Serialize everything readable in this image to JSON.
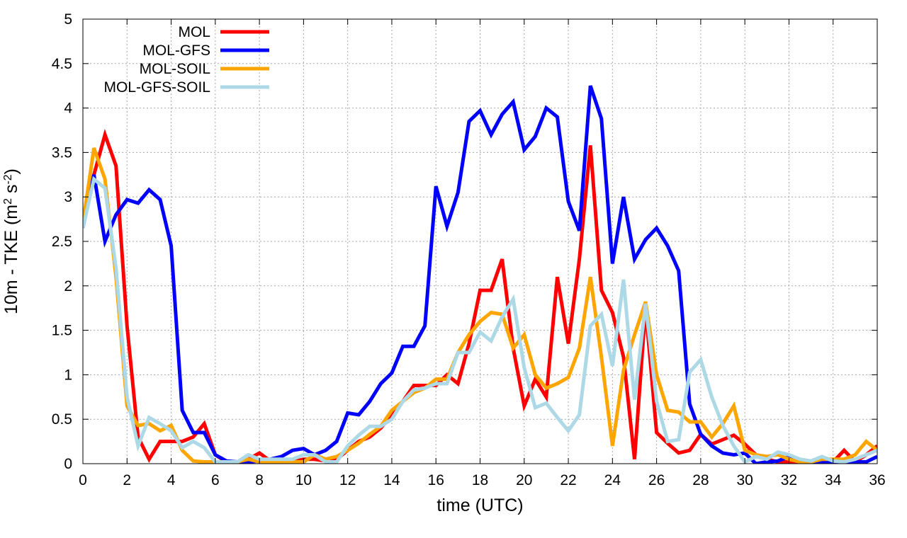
{
  "chart_data": {
    "type": "line",
    "title": "",
    "xlabel": "time (UTC)",
    "ylabel": "10m - TKE (m² s⁻²)",
    "ylabel_parts": {
      "base": "10m - TKE (m",
      "exp1": "2",
      "mid": " s",
      "exp2": "-2",
      "end": ")"
    },
    "xlim": [
      0,
      36
    ],
    "ylim": [
      0,
      5
    ],
    "xticks": [
      0,
      2,
      4,
      6,
      8,
      10,
      12,
      14,
      16,
      18,
      20,
      22,
      24,
      26,
      28,
      30,
      32,
      34,
      36
    ],
    "xtick_labels": [
      "0",
      "2",
      "4",
      "6",
      "8",
      "10",
      "12",
      "14",
      "16",
      "18",
      "20",
      "22",
      "24",
      "26",
      "28",
      "30",
      "32",
      "34",
      "36"
    ],
    "yticks": [
      0,
      0.5,
      1,
      1.5,
      2,
      2.5,
      3,
      3.5,
      4,
      4.5,
      5
    ],
    "ytick_labels": [
      "0",
      "0.5",
      "1",
      "1.5",
      "2",
      "2.5",
      "3",
      "3.5",
      "4",
      "4.5",
      "5"
    ],
    "grid": true,
    "legend_position": "top-left",
    "x": [
      0,
      0.5,
      1,
      1.5,
      2,
      2.5,
      3,
      3.5,
      4,
      4.5,
      5,
      5.5,
      6,
      6.5,
      7,
      7.5,
      8,
      8.5,
      9,
      9.5,
      10,
      10.5,
      11,
      11.5,
      12,
      12.5,
      13,
      13.5,
      14,
      14.5,
      15,
      15.5,
      16,
      16.5,
      17,
      17.5,
      18,
      18.5,
      19,
      19.5,
      20,
      20.5,
      21,
      21.5,
      22,
      22.5,
      23,
      23.5,
      24,
      24.5,
      25,
      25.5,
      26,
      26.5,
      27,
      27.5,
      28,
      28.5,
      29,
      29.5,
      30,
      30.5,
      31,
      31.5,
      32,
      32.5,
      33,
      33.5,
      34,
      34.5,
      35,
      35.5,
      36
    ],
    "series": [
      {
        "name": "MOL",
        "color": "#ff0000",
        "values": [
          2.7,
          3.25,
          3.7,
          3.35,
          1.55,
          0.3,
          0.05,
          0.25,
          0.25,
          0.25,
          0.3,
          0.45,
          0.1,
          0.02,
          0.02,
          0.05,
          0.12,
          0.03,
          0.02,
          0.02,
          0.05,
          0.05,
          0.03,
          0.05,
          0.15,
          0.25,
          0.3,
          0.4,
          0.55,
          0.7,
          0.88,
          0.88,
          0.88,
          1.0,
          0.9,
          1.35,
          1.95,
          1.95,
          2.3,
          1.3,
          0.65,
          0.95,
          0.75,
          2.1,
          1.35,
          2.3,
          3.58,
          1.95,
          1.7,
          1.2,
          0.05,
          1.75,
          0.35,
          0.23,
          0.12,
          0.15,
          0.33,
          0.22,
          0.27,
          0.32,
          0.22,
          0.1,
          0.05,
          0.02,
          0.02,
          0.02,
          0.02,
          0.02,
          0.02,
          0.15,
          0.02,
          0.1,
          0.2
        ]
      },
      {
        "name": "MOL-GFS",
        "color": "#0000ff",
        "values": [
          2.65,
          3.25,
          2.5,
          2.8,
          2.97,
          2.93,
          3.08,
          2.97,
          2.45,
          0.6,
          0.35,
          0.35,
          0.1,
          0.03,
          0.02,
          0.02,
          0.03,
          0.05,
          0.08,
          0.15,
          0.17,
          0.1,
          0.15,
          0.25,
          0.57,
          0.55,
          0.7,
          0.9,
          1.02,
          1.32,
          1.32,
          1.55,
          3.12,
          2.67,
          3.05,
          3.85,
          3.97,
          3.7,
          3.93,
          4.07,
          3.53,
          3.68,
          4.0,
          3.9,
          2.95,
          2.62,
          4.25,
          3.88,
          2.25,
          3.0,
          2.3,
          2.52,
          2.65,
          2.45,
          2.17,
          0.67,
          0.33,
          0.2,
          0.12,
          0.1,
          0.12,
          0.0,
          0.02,
          0.03,
          0.08,
          0.03,
          0.02,
          0.02,
          0.02,
          0.02,
          0.02,
          0.02,
          0.08
        ]
      },
      {
        "name": "MOL-SOIL",
        "color": "#ffa500",
        "values": [
          2.7,
          3.55,
          3.2,
          2.1,
          0.65,
          0.43,
          0.45,
          0.37,
          0.43,
          0.15,
          0.03,
          0.02,
          0.02,
          0.02,
          0.02,
          0.05,
          0.02,
          0.02,
          0.02,
          0.02,
          0.02,
          0.1,
          0.05,
          0.08,
          0.15,
          0.23,
          0.33,
          0.42,
          0.6,
          0.7,
          0.8,
          0.85,
          0.95,
          0.95,
          1.25,
          1.45,
          1.6,
          1.7,
          1.68,
          1.3,
          1.45,
          1.0,
          0.85,
          0.9,
          0.97,
          1.3,
          2.1,
          1.2,
          0.2,
          1.05,
          1.45,
          1.82,
          1.0,
          0.6,
          0.58,
          0.47,
          0.47,
          0.3,
          0.45,
          0.65,
          0.15,
          0.1,
          0.08,
          0.1,
          0.05,
          0.02,
          0.02,
          0.05,
          0.05,
          0.05,
          0.1,
          0.25,
          0.15
        ]
      },
      {
        "name": "MOL-GFS-SOIL",
        "color": "#add8e6",
        "values": [
          2.65,
          3.2,
          3.1,
          2.2,
          0.75,
          0.2,
          0.52,
          0.45,
          0.37,
          0.18,
          0.25,
          0.18,
          0.02,
          0.02,
          0.02,
          0.1,
          0.05,
          0.05,
          0.05,
          0.05,
          0.1,
          0.1,
          0.02,
          0.02,
          0.2,
          0.32,
          0.42,
          0.42,
          0.5,
          0.7,
          0.83,
          0.85,
          0.9,
          0.9,
          1.25,
          1.25,
          1.48,
          1.38,
          1.65,
          1.85,
          1.08,
          0.63,
          0.68,
          0.52,
          0.37,
          0.55,
          1.55,
          1.68,
          1.1,
          2.07,
          0.72,
          1.8,
          0.7,
          0.25,
          0.27,
          1.03,
          1.17,
          0.75,
          0.43,
          0.2,
          0.02,
          0.08,
          0.05,
          0.13,
          0.1,
          0.05,
          0.03,
          0.08,
          0.03,
          0.02,
          0.05,
          0.1,
          0.15
        ]
      }
    ]
  }
}
